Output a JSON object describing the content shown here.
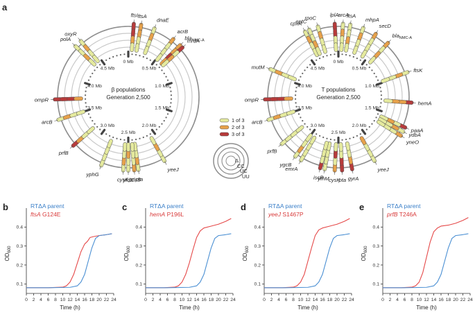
{
  "figure": {
    "panel_labels": [
      "a",
      "b",
      "c",
      "d",
      "e"
    ],
    "colors": {
      "one_of_three": "#e5ea9e",
      "two_of_three": "#e7a14a",
      "three_of_three": "#b73b3b",
      "ring": "#8d8d8d",
      "ring_light": "#c9c9c9",
      "genome_dot": "#6a6a6a",
      "parent_curve": "#4a8fd3",
      "mutant_curve": "#e54848"
    },
    "legend": {
      "items": [
        {
          "label": "1 of 3",
          "color": "#e5ea9e"
        },
        {
          "label": "2 of 3",
          "color": "#e7a14a"
        },
        {
          "label": "3 of 3",
          "color": "#b73b3b"
        }
      ],
      "ring_labels": [
        "Δ",
        "CC",
        "UC",
        "UU"
      ]
    },
    "mb_labels": [
      "0 Mb",
      "0.5 Mb",
      "1.0 Mb",
      "1.5 Mb",
      "2.0 Mb",
      "2.5 Mb",
      "3.0 Mb",
      "3.5 Mb",
      "4.0 Mb",
      "4.5 Mb"
    ],
    "circles": [
      {
        "center_line1": "β populations",
        "center_line2": "Generation 2,500",
        "genes": [
          {
            "name": "ftsI",
            "pos": 0.012,
            "rings": [
              3,
              3,
              2,
              1
            ]
          },
          {
            "name": "ftsA",
            "pos": 0.028,
            "rings": [
              2,
              2,
              1,
              1
            ]
          },
          {
            "name": "dnaE",
            "pos": 0.058,
            "rings": [
              1,
              2,
              1,
              1
            ]
          },
          {
            "name": "acrB",
            "pos": 0.105,
            "rings": [
              2,
              1,
              1,
              1
            ]
          },
          {
            "name": "blaNMC-A",
            "pos": 0.125,
            "rings": [
              2,
              2,
              3,
              2
            ]
          },
          {
            "name": "mrdA",
            "pos": 0.132,
            "rings": [
              3,
              1,
              2,
              1
            ]
          },
          {
            "name": "yeeJ",
            "pos": 0.418,
            "rings": [
              1,
              1,
              2,
              1
            ]
          },
          {
            "name": "pta",
            "pos": 0.478,
            "rings": [
              1,
              2,
              1,
              1
            ]
          },
          {
            "name": "pdxB",
            "pos": 0.487,
            "rings": [
              2,
              1,
              1,
              1
            ]
          },
          {
            "name": "yfdE",
            "pos": 0.5,
            "rings": [
              1,
              1,
              2,
              1
            ]
          },
          {
            "name": "cysK",
            "pos": 0.511,
            "rings": [
              1,
              2,
              1,
              1
            ]
          },
          {
            "name": "yphG",
            "pos": 0.56,
            "rings": [
              1,
              1,
              1,
              1
            ]
          },
          {
            "name": "prfB",
            "pos": 0.635,
            "rings": [
              3,
              2,
              1,
              1
            ]
          },
          {
            "name": "arcB",
            "pos": 0.7,
            "rings": [
              1,
              2,
              1,
              1
            ]
          },
          {
            "name": "ompR",
            "pos": 0.745,
            "rings": [
              3,
              3,
              3,
              2
            ]
          },
          {
            "name": "polA",
            "pos": 0.872,
            "rings": [
              1,
              1,
              2,
              1
            ]
          },
          {
            "name": "oxyR",
            "pos": 0.888,
            "rings": [
              1,
              2,
              1,
              1
            ]
          }
        ]
      },
      {
        "center_line1": "T populations",
        "center_line2": "Generation 2,500",
        "genes": [
          {
            "name": "lplA",
            "pos": 0.992,
            "rings": [
              3,
              3,
              1,
              1
            ]
          },
          {
            "name": "arcA",
            "pos": 0.01,
            "rings": [
              1,
              2,
              1,
              1
            ]
          },
          {
            "name": "ftsA",
            "pos": 0.026,
            "rings": [
              1,
              1,
              2,
              1
            ]
          },
          {
            "name": "mhpA",
            "pos": 0.055,
            "rings": [
              1,
              2,
              1,
              1
            ]
          },
          {
            "name": "secD",
            "pos": 0.085,
            "rings": [
              2,
              1,
              1,
              1
            ]
          },
          {
            "name": "blaNMC-A",
            "pos": 0.118,
            "rings": [
              2,
              1,
              2,
              1
            ]
          },
          {
            "name": "ftsK",
            "pos": 0.195,
            "rings": [
              1,
              2,
              1,
              1
            ]
          },
          {
            "name": "hemA",
            "pos": 0.262,
            "rings": [
              3,
              2,
              2,
              1
            ]
          },
          {
            "name": "paaA",
            "pos": 0.318,
            "rings": [
              3,
              1,
              2,
              1
            ]
          },
          {
            "name": "ydbA",
            "pos": 0.328,
            "rings": [
              1,
              2,
              1,
              1
            ]
          },
          {
            "name": "yneO",
            "pos": 0.338,
            "rings": [
              2,
              1,
              1,
              1
            ]
          },
          {
            "name": "yeeJ",
            "pos": 0.418,
            "rings": [
              1,
              1,
              1,
              2
            ]
          },
          {
            "name": "gyrA",
            "pos": 0.47,
            "rings": [
              3,
              2,
              1,
              1
            ]
          },
          {
            "name": "pta",
            "pos": 0.492,
            "rings": [
              3,
              3,
              1,
              1
            ]
          },
          {
            "name": "cysK",
            "pos": 0.508,
            "rings": [
              2,
              1,
              3,
              1
            ]
          },
          {
            "name": "yfhM",
            "pos": 0.53,
            "rings": [
              1,
              1,
              1,
              1
            ]
          },
          {
            "name": "iscR",
            "pos": 0.54,
            "rings": [
              3,
              1,
              1,
              1
            ]
          },
          {
            "name": "emrA",
            "pos": 0.585,
            "rings": [
              1,
              1,
              1,
              1
            ]
          },
          {
            "name": "ygcB",
            "pos": 0.6,
            "rings": [
              1,
              2,
              1,
              1
            ]
          },
          {
            "name": "prfB",
            "pos": 0.64,
            "rings": [
              1,
              1,
              1,
              1
            ]
          },
          {
            "name": "arcB",
            "pos": 0.7,
            "rings": [
              1,
              2,
              1,
              1
            ]
          },
          {
            "name": "ompR",
            "pos": 0.745,
            "rings": [
              3,
              3,
              3,
              2
            ]
          },
          {
            "name": "mutM",
            "pos": 0.812,
            "rings": [
              1,
              2,
              1,
              1
            ]
          },
          {
            "name": "cpxR",
            "pos": 0.925,
            "rings": [
              1,
              2,
              1,
              1
            ]
          },
          {
            "name": "eptC",
            "pos": 0.935,
            "rings": [
              1,
              1,
              2,
              1
            ]
          },
          {
            "name": "rpoC",
            "pos": 0.955,
            "rings": [
              1,
              2,
              1,
              1
            ]
          }
        ]
      }
    ],
    "growth_panels": [
      {
        "letter": "b",
        "parent_label": "RTΔA parent",
        "mutant_gene": "ftsA",
        "mutant_change": "G124E",
        "ylabel": "OD600",
        "xlabel": "Time (h)",
        "x_ticks": [
          0,
          2,
          4,
          6,
          8,
          10,
          12,
          14,
          16,
          18,
          20,
          22,
          24
        ],
        "y_ticks": [
          0.1,
          0.2,
          0.3,
          0.4
        ],
        "xlim": [
          0,
          24
        ],
        "ylim": [
          0.05,
          0.5
        ],
        "parent_curve": [
          [
            0,
            0.08
          ],
          [
            6,
            0.08
          ],
          [
            12,
            0.082
          ],
          [
            14,
            0.09
          ],
          [
            15,
            0.11
          ],
          [
            16,
            0.15
          ],
          [
            17,
            0.22
          ],
          [
            18,
            0.29
          ],
          [
            19,
            0.34
          ],
          [
            20,
            0.355
          ],
          [
            22,
            0.36
          ],
          [
            23.5,
            0.365
          ]
        ],
        "mutant_curve": [
          [
            0,
            0.08
          ],
          [
            6,
            0.08
          ],
          [
            10,
            0.083
          ],
          [
            11,
            0.09
          ],
          [
            12,
            0.11
          ],
          [
            13,
            0.15
          ],
          [
            14,
            0.21
          ],
          [
            15,
            0.27
          ],
          [
            16,
            0.31
          ],
          [
            16.8,
            0.325
          ],
          [
            17.5,
            0.345
          ],
          [
            18.5,
            0.35
          ],
          [
            20,
            0.355
          ],
          [
            22,
            0.36
          ],
          [
            23.5,
            0.365
          ]
        ]
      },
      {
        "letter": "c",
        "parent_label": "RTΔA parent",
        "mutant_gene": "hemA",
        "mutant_change": "P196L",
        "ylabel": "OD600",
        "xlabel": "Time (h)",
        "x_ticks": [
          0,
          2,
          4,
          6,
          8,
          10,
          12,
          14,
          16,
          18,
          20,
          22,
          24
        ],
        "y_ticks": [
          0.1,
          0.2,
          0.3,
          0.4
        ],
        "xlim": [
          0,
          24
        ],
        "ylim": [
          0.05,
          0.5
        ],
        "parent_curve": [
          [
            0,
            0.08
          ],
          [
            6,
            0.08
          ],
          [
            12,
            0.082
          ],
          [
            14,
            0.09
          ],
          [
            15,
            0.11
          ],
          [
            16,
            0.15
          ],
          [
            17,
            0.22
          ],
          [
            18,
            0.29
          ],
          [
            19,
            0.34
          ],
          [
            20,
            0.355
          ],
          [
            22,
            0.36
          ],
          [
            23.5,
            0.365
          ]
        ],
        "mutant_curve": [
          [
            0,
            0.08
          ],
          [
            5,
            0.08
          ],
          [
            8,
            0.083
          ],
          [
            9,
            0.09
          ],
          [
            10,
            0.11
          ],
          [
            11,
            0.15
          ],
          [
            12,
            0.21
          ],
          [
            13,
            0.28
          ],
          [
            14,
            0.345
          ],
          [
            15,
            0.38
          ],
          [
            16,
            0.395
          ],
          [
            18,
            0.405
          ],
          [
            20,
            0.415
          ],
          [
            22,
            0.43
          ],
          [
            23.5,
            0.445
          ]
        ]
      },
      {
        "letter": "d",
        "parent_label": "RTΔA parent",
        "mutant_gene": "yeeJ",
        "mutant_change": "S1467P",
        "ylabel": "OD600",
        "xlabel": "Time (h)",
        "x_ticks": [
          0,
          2,
          4,
          6,
          8,
          10,
          12,
          14,
          16,
          18,
          20,
          22,
          24
        ],
        "y_ticks": [
          0.1,
          0.2,
          0.3,
          0.4
        ],
        "xlim": [
          0,
          24
        ],
        "ylim": [
          0.05,
          0.5
        ],
        "parent_curve": [
          [
            0,
            0.08
          ],
          [
            6,
            0.08
          ],
          [
            12,
            0.082
          ],
          [
            14,
            0.09
          ],
          [
            15,
            0.11
          ],
          [
            16,
            0.15
          ],
          [
            17,
            0.22
          ],
          [
            18,
            0.29
          ],
          [
            19,
            0.34
          ],
          [
            20,
            0.355
          ],
          [
            22,
            0.36
          ],
          [
            23.5,
            0.365
          ]
        ],
        "mutant_curve": [
          [
            0,
            0.08
          ],
          [
            5,
            0.08
          ],
          [
            8,
            0.083
          ],
          [
            9,
            0.09
          ],
          [
            10,
            0.11
          ],
          [
            11,
            0.15
          ],
          [
            12,
            0.22
          ],
          [
            13,
            0.29
          ],
          [
            14,
            0.355
          ],
          [
            15,
            0.385
          ],
          [
            16,
            0.395
          ],
          [
            18,
            0.405
          ],
          [
            20,
            0.415
          ],
          [
            22,
            0.43
          ],
          [
            23.5,
            0.445
          ]
        ]
      },
      {
        "letter": "e",
        "parent_label": "RTΔA parent",
        "mutant_gene": "prfB",
        "mutant_change": "T246A",
        "ylabel": "OD600",
        "xlabel": "Time (h)",
        "x_ticks": [
          0,
          2,
          4,
          6,
          8,
          10,
          12,
          14,
          16,
          18,
          20,
          22,
          24
        ],
        "y_ticks": [
          0.1,
          0.2,
          0.3,
          0.4
        ],
        "xlim": [
          0,
          24
        ],
        "ylim": [
          0.05,
          0.5
        ],
        "parent_curve": [
          [
            0,
            0.08
          ],
          [
            6,
            0.08
          ],
          [
            12,
            0.082
          ],
          [
            14,
            0.09
          ],
          [
            15,
            0.11
          ],
          [
            16,
            0.15
          ],
          [
            17,
            0.22
          ],
          [
            18,
            0.29
          ],
          [
            19,
            0.34
          ],
          [
            20,
            0.355
          ],
          [
            22,
            0.36
          ],
          [
            23.5,
            0.365
          ]
        ],
        "mutant_curve": [
          [
            0,
            0.08
          ],
          [
            5,
            0.08
          ],
          [
            8,
            0.083
          ],
          [
            9,
            0.09
          ],
          [
            10,
            0.11
          ],
          [
            11,
            0.16
          ],
          [
            12,
            0.24
          ],
          [
            13,
            0.32
          ],
          [
            14,
            0.375
          ],
          [
            15,
            0.395
          ],
          [
            16,
            0.405
          ],
          [
            18,
            0.41
          ],
          [
            20,
            0.42
          ],
          [
            22,
            0.435
          ],
          [
            23.5,
            0.45
          ]
        ]
      }
    ]
  }
}
